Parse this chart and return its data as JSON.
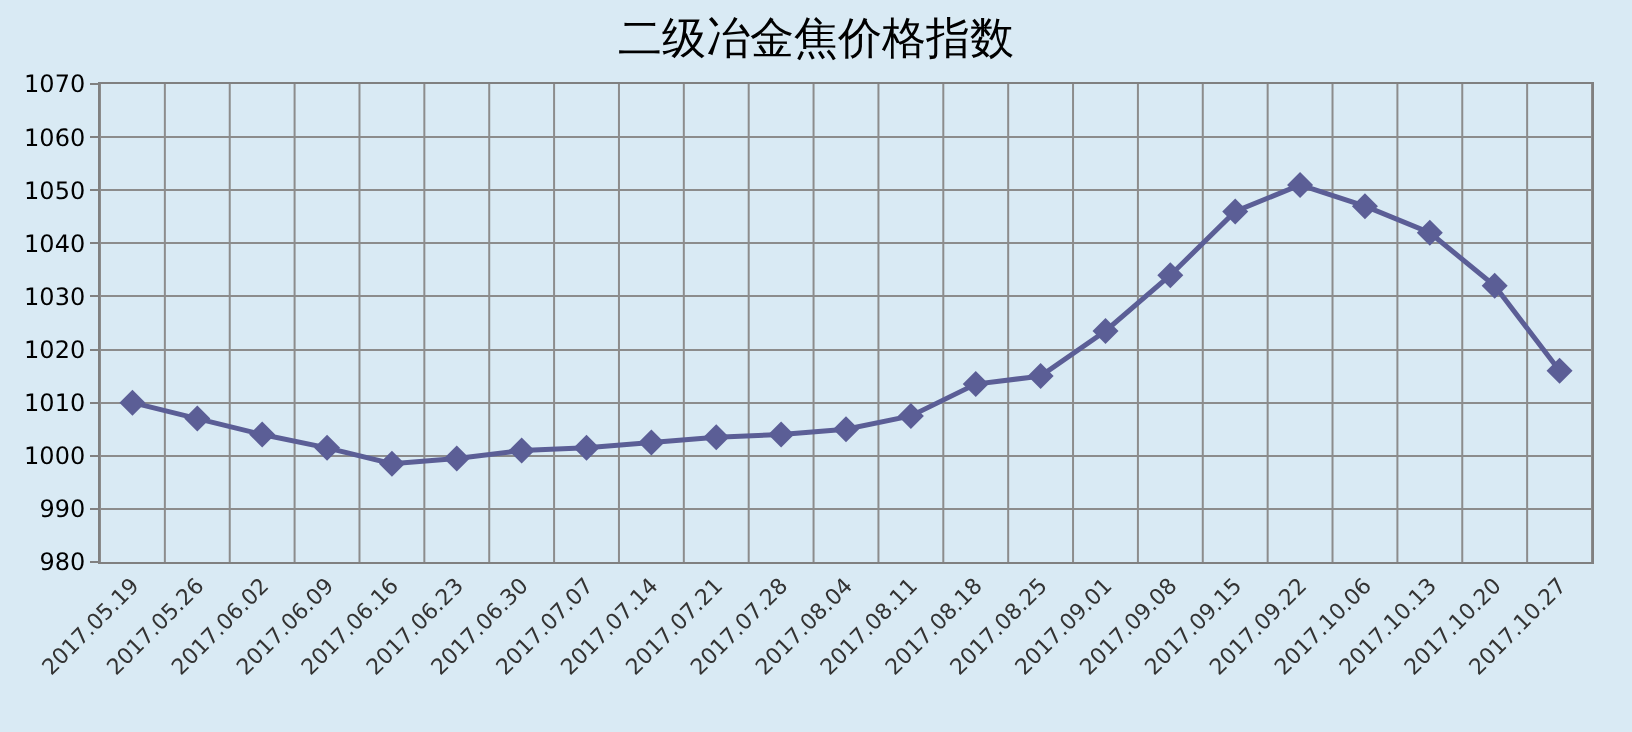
{
  "chart_data": {
    "type": "line",
    "title": "二级冶金焦价格指数",
    "categories": [
      "2017.05.19",
      "2017.05.26",
      "2017.06.02",
      "2017.06.09",
      "2017.06.16",
      "2017.06.23",
      "2017.06.30",
      "2017.07.07",
      "2017.07.14",
      "2017.07.21",
      "2017.07.28",
      "2017.08.04",
      "2017.08.11",
      "2017.08.18",
      "2017.08.25",
      "2017.09.01",
      "2017.09.08",
      "2017.09.15",
      "2017.09.22",
      "2017.10.06",
      "2017.10.13",
      "2017.10.20",
      "2017.10.27"
    ],
    "series": [
      {
        "color": "#5b5e96",
        "values": [
          1010,
          1007,
          1004,
          1001.5,
          998.5,
          999.5,
          1001,
          1001.5,
          1002.5,
          1003.5,
          1004,
          1005,
          1007.5,
          1013.5,
          1015,
          1023.5,
          1034,
          1046,
          1051,
          1047,
          1042,
          1032,
          1016
        ]
      }
    ],
    "ylim": [
      980,
      1070
    ],
    "yticks": [
      980,
      990,
      1000,
      1010,
      1020,
      1030,
      1040,
      1050,
      1060,
      1070
    ],
    "grid": true,
    "marker": "diamond",
    "line_style": "solid"
  }
}
